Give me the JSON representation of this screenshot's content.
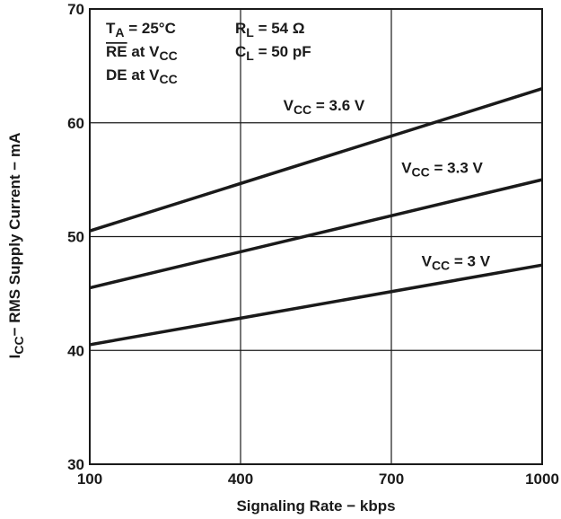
{
  "chart_data": {
    "type": "line",
    "xlabel": "Signaling Rate − kbps",
    "ylabel": {
      "prefix": "I",
      "sub": "CC",
      "rest": "− RMS Supply Current − mA"
    },
    "xlim": [
      100,
      1000
    ],
    "ylim": [
      30,
      70
    ],
    "x_ticks": [
      100,
      400,
      700,
      1000
    ],
    "y_ticks": [
      30,
      40,
      50,
      60,
      70
    ],
    "grid": true,
    "conditions": [
      {
        "main": "T",
        "sub": "A",
        "rest": " = 25°C"
      },
      {
        "main": "RE",
        "overline": true,
        "rest": " at V",
        "sub": "CC"
      },
      {
        "main": "DE",
        "rest": " at V",
        "sub": "CC"
      },
      {
        "main": "R",
        "sub": "L",
        "rest": " = 54 Ω"
      },
      {
        "main": "C",
        "sub": "L",
        "rest": " = 50 pF"
      }
    ],
    "series": [
      {
        "name": "V_CC = 3.6 V",
        "label_main": "V",
        "label_sub": "CC",
        "label_rest": " = 3.6 V",
        "x": [
          100,
          1000
        ],
        "y": [
          50.5,
          63.0
        ],
        "label_at": [
          485,
          61.1
        ]
      },
      {
        "name": "V_CC = 3.3 V",
        "label_main": "V",
        "label_sub": "CC",
        "label_rest": " = 3.3 V",
        "x": [
          100,
          1000
        ],
        "y": [
          45.5,
          55.0
        ],
        "label_at": [
          720,
          55.6
        ]
      },
      {
        "name": "V_CC = 3 V",
        "label_main": "V",
        "label_sub": "CC",
        "label_rest": " = 3 V",
        "x": [
          100,
          1000
        ],
        "y": [
          40.5,
          47.5
        ],
        "label_at": [
          760,
          47.4
        ]
      }
    ]
  }
}
